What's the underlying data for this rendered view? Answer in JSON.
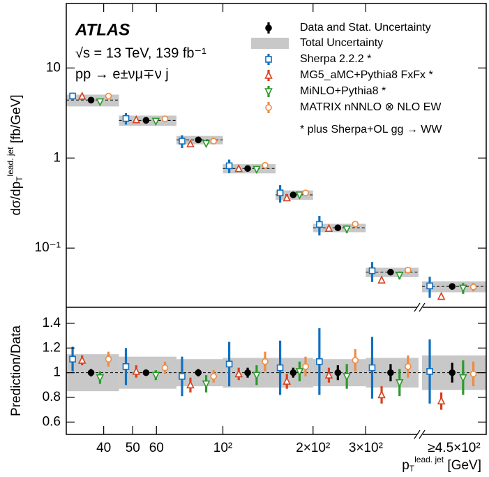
{
  "chart_data": [
    {
      "type": "errorbar",
      "ylog": true,
      "ylim": [
        0.022,
        52
      ],
      "yticks": [
        10,
        1,
        {
          "value": 0.1,
          "label": "10⁻¹"
        }
      ],
      "ylabel": [
        "dσ/dp",
        "T",
        "lead. jet",
        " [fb/GeV]"
      ],
      "annotations": [
        "ATLAS",
        "√s = 13 TeV, 139 fb⁻¹",
        "pp → e±νμ∓ν j",
        "* plus Sherpa+OL gg → WW"
      ],
      "band_name": "Total Uncertainty",
      "band_color": "#c8c8c8",
      "total_uncertainty": [
        0.66,
        0.34,
        0.17,
        0.09,
        0.047,
        0.018,
        0.0065,
        0.0052
      ],
      "series": [
        {
          "name": "Data and Stat. Uncertainty",
          "color": "#000000",
          "marker": "dot",
          "values": [
            4.4,
            2.62,
            1.59,
            0.765,
            0.39,
            0.168,
            0.054,
            0.0375
          ],
          "errors": [
            0.13,
            0.05,
            0.05,
            0.03,
            0.016,
            0.01,
            0.004,
            0.003
          ]
        },
        {
          "name": "Sherpa 2.2.2 *",
          "color": "#1170c0",
          "marker": "square",
          "values": [
            4.88,
            2.75,
            1.54,
            0.82,
            0.41,
            0.183,
            0.056,
            0.038
          ],
          "errors": [
            0.44,
            0.4,
            0.25,
            0.14,
            0.09,
            0.045,
            0.014,
            0.01
          ]
        },
        {
          "name": "MG5_aMC+Pythia8 FxFx *",
          "color": "#d8401c",
          "marker": "tri-up",
          "values": [
            4.84,
            2.65,
            1.43,
            0.76,
            0.36,
            0.165,
            0.044,
            0.029
          ],
          "errors": [
            0.2,
            0.13,
            0.09,
            0.04,
            0.02,
            0.01,
            0.003,
            0.002
          ]
        },
        {
          "name": "MiNLO+Pythia8 *",
          "color": "#2a9a2a",
          "marker": "tri-down",
          "values": [
            4.22,
            2.57,
            1.45,
            0.75,
            0.39,
            0.163,
            0.05,
            0.036
          ],
          "errors": [
            0.2,
            0.1,
            0.1,
            0.06,
            0.03,
            0.016,
            0.005,
            0.005
          ]
        },
        {
          "name": "MATRIX nNNLO ⊗ NLO EW",
          "color": "#f08a40",
          "marker": "circle",
          "values": [
            4.88,
            2.72,
            1.54,
            0.83,
            0.41,
            0.185,
            0.057,
            0.037
          ],
          "errors": [
            0.25,
            0.13,
            0.08,
            0.06,
            0.03,
            0.015,
            0.005,
            0.004
          ]
        }
      ]
    },
    {
      "type": "ratio",
      "ylabel": "Prediction/Data",
      "ylim": [
        0.5,
        1.53
      ],
      "yticks": [
        1.4,
        1.2,
        1,
        0.8,
        0.6
      ],
      "reference": 1,
      "total_uncertainty": [
        0.15,
        0.13,
        0.11,
        0.12,
        0.12,
        0.11,
        0.12,
        0.14
      ],
      "xlog": true,
      "xlim": [
        30,
        450
      ],
      "xticks": [
        40,
        50,
        60,
        {
          "value": 100,
          "label": "10²"
        },
        {
          "value": 200,
          "label": "2×10²"
        },
        {
          "value": 300,
          "label": "3×10²"
        }
      ],
      "bin_edges": [
        30,
        45,
        70,
        100,
        150,
        200,
        300,
        450
      ],
      "overflow_label": "≥4.5×10²",
      "xlabel": [
        "p",
        "T",
        "lead. jet",
        " [GeV]"
      ],
      "series": [
        {
          "values": [
            1.0,
            1.0,
            1.0,
            1.0,
            1.0,
            1.0,
            1.0,
            1.0
          ],
          "errors": [
            0.03,
            0.02,
            0.03,
            0.04,
            0.04,
            0.06,
            0.07,
            0.08
          ]
        },
        {
          "values": [
            1.11,
            1.05,
            0.97,
            1.07,
            1.04,
            1.09,
            1.04,
            1.01
          ],
          "errors": [
            0.1,
            0.15,
            0.16,
            0.18,
            0.22,
            0.27,
            0.25,
            0.26
          ]
        },
        {
          "values": [
            1.1,
            1.01,
            0.9,
            0.99,
            0.93,
            0.98,
            0.82,
            0.77
          ],
          "errors": [
            0.04,
            0.05,
            0.06,
            0.05,
            0.06,
            0.06,
            0.07,
            0.07
          ]
        },
        {
          "values": [
            0.96,
            0.98,
            0.91,
            0.98,
            1.01,
            0.97,
            0.92,
            0.96
          ],
          "errors": [
            0.05,
            0.04,
            0.07,
            0.08,
            0.08,
            0.1,
            0.11,
            0.14
          ]
        },
        {
          "values": [
            1.11,
            1.04,
            0.97,
            1.09,
            1.05,
            1.1,
            1.05,
            0.99
          ],
          "errors": [
            0.06,
            0.05,
            0.05,
            0.08,
            0.08,
            0.09,
            0.09,
            0.1
          ]
        }
      ]
    }
  ]
}
